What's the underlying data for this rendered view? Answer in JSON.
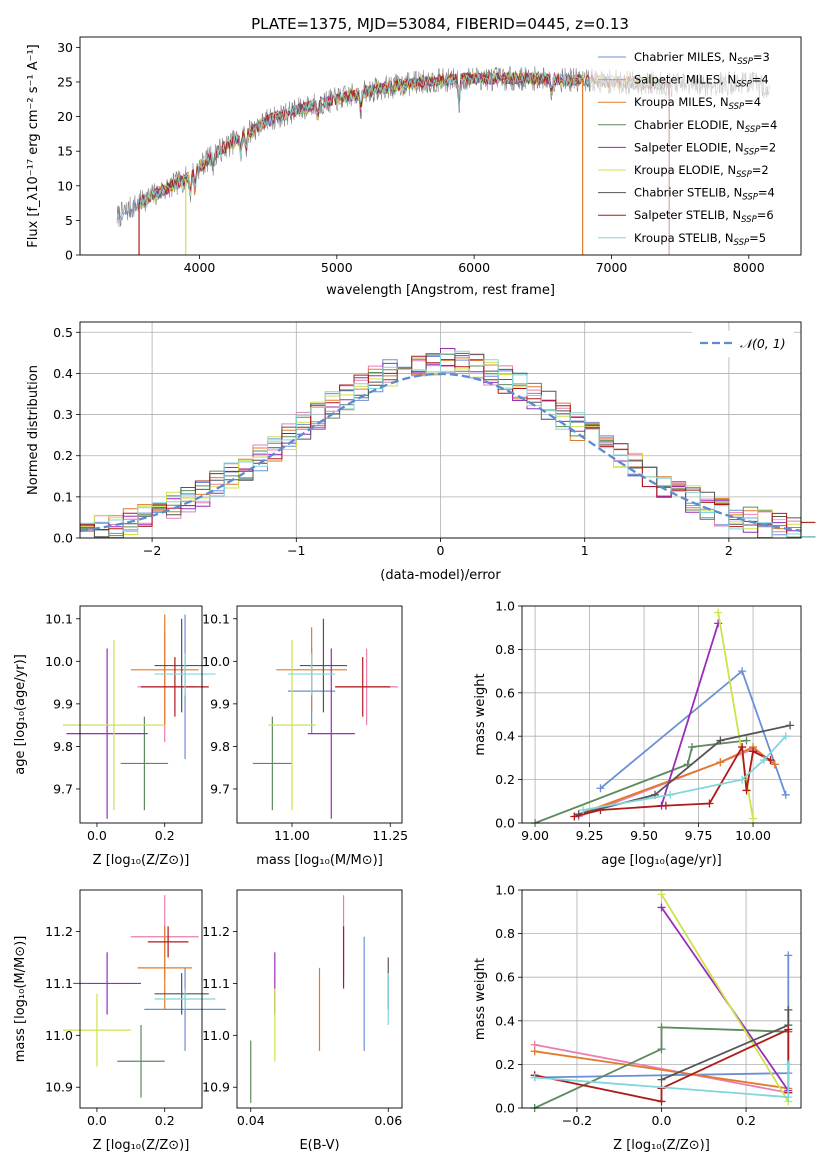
{
  "figure": {
    "title": "PLATE=1375, MJD=53084, FIBERID=0445, z=0.13"
  },
  "colors": {
    "Chabrier MILES": "#6b8fd6",
    "Salpeter MILES": "#e87fb0",
    "Kroupa MILES": "#e07b2a",
    "Chabrier ELODIE": "#5e8a5e",
    "Salpeter ELODIE": "#9a2db8",
    "Kroupa ELODIE": "#cfe24a",
    "Chabrier STELIB": "#555555",
    "Salpeter STELIB": "#b01a1a",
    "Kroupa STELIB": "#7fd6dc",
    "data": "#808080",
    "gaussian": "#5b8bd0"
  },
  "chart_data": [
    {
      "id": "spectrum",
      "type": "line",
      "xlabel": "wavelength [Angstrom, rest frame]",
      "ylabel": "Flux [f_λ10⁻¹⁷ erg cm⁻² s⁻¹ A⁻¹]",
      "xlim": [
        3130,
        8380
      ],
      "ylim": [
        0,
        31.5
      ],
      "xticks": [
        4000,
        5000,
        6000,
        7000,
        8000
      ],
      "yticks": [
        0,
        5,
        10,
        15,
        20,
        25,
        30
      ],
      "legend_position": "top-right",
      "legend": [
        {
          "label": "Chabrier MILES, N",
          "sub": "SSP",
          "val": "=3"
        },
        {
          "label": "Salpeter MILES, N",
          "sub": "SSP",
          "val": "=4"
        },
        {
          "label": "Kroupa MILES, N",
          "sub": "SSP",
          "val": "=4"
        },
        {
          "label": "Chabrier ELODIE, N",
          "sub": "SSP",
          "val": "=4"
        },
        {
          "label": "Salpeter ELODIE, N",
          "sub": "SSP",
          "val": "=2"
        },
        {
          "label": "Kroupa ELODIE, N",
          "sub": "SSP",
          "val": "=2"
        },
        {
          "label": "Chabrier STELIB, N",
          "sub": "SSP",
          "val": "=4"
        },
        {
          "label": "Salpeter STELIB, N",
          "sub": "SSP",
          "val": "=6"
        },
        {
          "label": "Kroupa STELIB, N",
          "sub": "SSP",
          "val": "=5"
        }
      ],
      "continuum": [
        [
          3400,
          5.5
        ],
        [
          3600,
          8
        ],
        [
          3900,
          11
        ],
        [
          4100,
          14.5
        ],
        [
          4500,
          19.5
        ],
        [
          4800,
          21.5
        ],
        [
          5000,
          22.5
        ],
        [
          5300,
          24
        ],
        [
          5600,
          25
        ],
        [
          6000,
          25.5
        ],
        [
          6500,
          25.5
        ],
        [
          7000,
          25
        ],
        [
          7300,
          24.8
        ],
        [
          7600,
          24.5
        ],
        [
          8000,
          25
        ],
        [
          8150,
          24
        ]
      ],
      "model_ranges": [
        [
          3400,
          3560
        ],
        [
          3560,
          7000
        ],
        [
          3560,
          7420
        ],
        [
          3560,
          7420
        ],
        [
          3560,
          7420
        ],
        [
          3560,
          7420
        ],
        [
          3560,
          7420
        ],
        [
          3560,
          7420
        ],
        [
          3560,
          7420
        ]
      ],
      "dropouts": [
        {
          "series": "Kroupa ELODIE",
          "x": 3900,
          "side": "start"
        },
        {
          "series": "Salpeter STELIB",
          "x": 3560,
          "side": "start"
        },
        {
          "series": "Kroupa MILES",
          "x": 6790,
          "side": "end"
        },
        {
          "series": "Salpeter STELIB",
          "x": 7420,
          "side": "end"
        }
      ]
    },
    {
      "id": "residuals",
      "type": "histogram",
      "xlabel": "(data-model)/error",
      "ylabel": "Normed distribution",
      "xlim": [
        -2.5,
        2.5
      ],
      "ylim": [
        0,
        0.525
      ],
      "xticks": [
        -2,
        -1,
        0,
        1,
        2
      ],
      "yticks": [
        0.0,
        0.1,
        0.2,
        0.3,
        0.4,
        0.5
      ],
      "grid": true,
      "bin_width": 0.1,
      "legend_position": "top-right",
      "legend_label": "𝒩(0, 1)"
    },
    {
      "id": "age-vs-Z",
      "type": "scatter-errorbar",
      "xlabel": "Z [log₁₀(Z/Z⊙)]",
      "ylabel": "age  [log₁₀(age/yr)]",
      "xlim": [
        -0.05,
        0.31
      ],
      "ylim": [
        9.62,
        10.13
      ],
      "xticks": [
        0.0,
        0.2
      ],
      "yticks": [
        9.7,
        9.8,
        9.9,
        10.0,
        10.1
      ],
      "points": [
        {
          "series": "Chabrier MILES",
          "x": 0.26,
          "xerr": 0.04,
          "y": 9.94,
          "yerr": 0.17
        },
        {
          "series": "Salpeter MILES",
          "x": 0.2,
          "xerr": 0.08,
          "y": 9.94,
          "yerr": 0.13
        },
        {
          "series": "Kroupa MILES",
          "x": 0.2,
          "xerr": 0.1,
          "y": 9.98,
          "yerr": 0.13
        },
        {
          "series": "Chabrier ELODIE",
          "x": 0.14,
          "xerr": 0.07,
          "y": 9.76,
          "yerr": 0.11
        },
        {
          "series": "Salpeter ELODIE",
          "x": 0.03,
          "xerr": 0.12,
          "y": 9.83,
          "yerr": 0.2
        },
        {
          "series": "Kroupa ELODIE",
          "x": 0.05,
          "xerr": 0.15,
          "y": 9.85,
          "yerr": 0.2
        },
        {
          "series": "Chabrier STELIB",
          "x": 0.25,
          "xerr": 0.08,
          "y": 9.99,
          "yerr": 0.11
        },
        {
          "series": "Salpeter STELIB",
          "x": 0.23,
          "xerr": 0.1,
          "y": 9.94,
          "yerr": 0.07
        },
        {
          "series": "Kroupa STELIB",
          "x": 0.26,
          "xerr": 0.09,
          "y": 9.97,
          "yerr": 0.05
        }
      ]
    },
    {
      "id": "age-vs-mass",
      "type": "scatter-errorbar",
      "xlabel": "mass [log₁₀(M/M⊙)]",
      "ylabel": "",
      "xlim": [
        10.86,
        11.28
      ],
      "ylim": [
        9.62,
        10.13
      ],
      "xticks": [
        11.0,
        11.25
      ],
      "yticks": [
        9.7,
        9.8,
        9.9,
        10.0,
        10.1
      ],
      "points": [
        {
          "series": "Chabrier MILES",
          "x": 11.05,
          "xerr": 0.06,
          "y": 9.93,
          "yerr": 0.1
        },
        {
          "series": "Salpeter MILES",
          "x": 11.19,
          "xerr": 0.08,
          "y": 9.94,
          "yerr": 0.09
        },
        {
          "series": "Kroupa MILES",
          "x": 11.05,
          "xerr": 0.09,
          "y": 9.98,
          "yerr": 0.1
        },
        {
          "series": "Chabrier ELODIE",
          "x": 10.95,
          "xerr": 0.05,
          "y": 9.76,
          "yerr": 0.11
        },
        {
          "series": "Salpeter ELODIE",
          "x": 11.1,
          "xerr": 0.06,
          "y": 9.83,
          "yerr": 0.2
        },
        {
          "series": "Kroupa ELODIE",
          "x": 11.0,
          "xerr": 0.06,
          "y": 9.85,
          "yerr": 0.2
        },
        {
          "series": "Chabrier STELIB",
          "x": 11.08,
          "xerr": 0.06,
          "y": 9.99,
          "yerr": 0.11
        },
        {
          "series": "Salpeter STELIB",
          "x": 11.18,
          "xerr": 0.07,
          "y": 9.94,
          "yerr": 0.07
        },
        {
          "series": "Kroupa STELIB",
          "x": 11.05,
          "xerr": 0.06,
          "y": 9.97,
          "yerr": 0.05
        }
      ]
    },
    {
      "id": "mass-weight-vs-age",
      "type": "line",
      "xlabel": "age  [log₁₀(age/yr)]",
      "ylabel": "mass weight",
      "xlim": [
        8.94,
        10.22
      ],
      "ylim": [
        0,
        1.0
      ],
      "xticks": [
        9.0,
        9.25,
        9.5,
        9.75,
        10.0
      ],
      "yticks": [
        0.0,
        0.2,
        0.4,
        0.6,
        0.8,
        1.0
      ],
      "grid": true,
      "series": [
        {
          "name": "Chabrier MILES",
          "points": [
            [
              9.3,
              0.16
            ],
            [
              9.95,
              0.7
            ],
            [
              10.15,
              0.13
            ]
          ]
        },
        {
          "name": "Salpeter MILES",
          "points": [
            [
              9.2,
              0.03
            ],
            [
              9.85,
              0.28
            ],
            [
              10.0,
              0.34
            ],
            [
              10.1,
              0.27
            ]
          ]
        },
        {
          "name": "Kroupa MILES",
          "points": [
            [
              9.2,
              0.04
            ],
            [
              9.85,
              0.28
            ],
            [
              10.0,
              0.35
            ],
            [
              10.1,
              0.27
            ]
          ]
        },
        {
          "name": "Chabrier ELODIE",
          "points": [
            [
              9.0,
              0.0
            ],
            [
              9.7,
              0.27
            ],
            [
              9.72,
              0.35
            ],
            [
              9.97,
              0.38
            ]
          ]
        },
        {
          "name": "Salpeter ELODIE",
          "points": [
            [
              9.58,
              0.08
            ],
            [
              9.84,
              0.92
            ]
          ]
        },
        {
          "name": "Kroupa ELODIE",
          "points": [
            [
              9.84,
              0.97
            ],
            [
              10.0,
              0.02
            ]
          ]
        },
        {
          "name": "Chabrier STELIB",
          "points": [
            [
              9.2,
              0.04
            ],
            [
              9.55,
              0.13
            ],
            [
              9.85,
              0.38
            ],
            [
              10.17,
              0.45
            ]
          ]
        },
        {
          "name": "Salpeter STELIB",
          "points": [
            [
              9.18,
              0.03
            ],
            [
              9.3,
              0.06
            ],
            [
              9.6,
              0.08
            ],
            [
              9.8,
              0.09
            ],
            [
              9.95,
              0.35
            ],
            [
              9.97,
              0.15
            ],
            [
              10.0,
              0.33
            ],
            [
              10.08,
              0.29
            ]
          ]
        },
        {
          "name": "Kroupa STELIB",
          "points": [
            [
              9.22,
              0.06
            ],
            [
              9.62,
              0.13
            ],
            [
              9.95,
              0.2
            ],
            [
              10.05,
              0.29
            ],
            [
              10.15,
              0.4
            ]
          ]
        }
      ]
    },
    {
      "id": "mass-vs-Z",
      "type": "scatter-errorbar",
      "xlabel": "Z [log₁₀(Z/Z⊙)]",
      "ylabel": "mass [log₁₀(M/M⊙)]",
      "xlim": [
        -0.05,
        0.31
      ],
      "ylim": [
        10.86,
        11.28
      ],
      "xticks": [
        0.0,
        0.2
      ],
      "yticks": [
        10.9,
        11.0,
        11.1,
        11.2
      ],
      "points": [
        {
          "series": "Chabrier MILES",
          "x": 0.26,
          "xerr": 0.12,
          "y": 11.05,
          "yerr": 0.08
        },
        {
          "series": "Salpeter MILES",
          "x": 0.2,
          "xerr": 0.1,
          "y": 11.19,
          "yerr": 0.08
        },
        {
          "series": "Kroupa MILES",
          "x": 0.2,
          "xerr": 0.08,
          "y": 11.13,
          "yerr": 0.08
        },
        {
          "series": "Chabrier ELODIE",
          "x": 0.13,
          "xerr": 0.07,
          "y": 10.95,
          "yerr": 0.07
        },
        {
          "series": "Salpeter ELODIE",
          "x": 0.03,
          "xerr": 0.1,
          "y": 11.1,
          "yerr": 0.06
        },
        {
          "series": "Kroupa ELODIE",
          "x": 0.0,
          "xerr": 0.1,
          "y": 11.01,
          "yerr": 0.07
        },
        {
          "series": "Chabrier STELIB",
          "x": 0.25,
          "xerr": 0.08,
          "y": 11.08,
          "yerr": 0.04
        },
        {
          "series": "Salpeter STELIB",
          "x": 0.21,
          "xerr": 0.06,
          "y": 11.18,
          "yerr": 0.03
        },
        {
          "series": "Kroupa STELIB",
          "x": 0.26,
          "xerr": 0.09,
          "y": 11.07,
          "yerr": 0.02
        }
      ]
    },
    {
      "id": "mass-vs-EBV",
      "type": "errorbar",
      "xlabel": "E(B-V)",
      "ylabel": "",
      "xlim": [
        0.038,
        0.062
      ],
      "ylim": [
        10.86,
        11.28
      ],
      "xticks": [
        0.04,
        0.06
      ],
      "yticks": [
        10.9,
        11.0,
        11.1,
        11.2
      ],
      "points": [
        {
          "series": "Chabrier MILES",
          "x": 0.0565,
          "y": 11.08,
          "yerr": 0.11
        },
        {
          "series": "Salpeter MILES",
          "x": 0.0535,
          "y": 11.19,
          "yerr": 0.08
        },
        {
          "series": "Kroupa MILES",
          "x": 0.05,
          "y": 11.05,
          "yerr": 0.08
        },
        {
          "series": "Chabrier ELODIE",
          "x": 0.04,
          "y": 10.93,
          "yerr": 0.06
        },
        {
          "series": "Salpeter ELODIE",
          "x": 0.0435,
          "y": 11.1,
          "yerr": 0.06
        },
        {
          "series": "Kroupa ELODIE",
          "x": 0.0435,
          "y": 11.02,
          "yerr": 0.07
        },
        {
          "series": "Chabrier STELIB",
          "x": 0.06,
          "y": 11.1,
          "yerr": 0.05
        },
        {
          "series": "Salpeter STELIB",
          "x": 0.0535,
          "y": 11.15,
          "yerr": 0.06
        },
        {
          "series": "Kroupa STELIB",
          "x": 0.06,
          "y": 11.07,
          "yerr": 0.05
        }
      ]
    },
    {
      "id": "mass-weight-vs-Z",
      "type": "line",
      "xlabel": "Z [log₁₀(Z/Z⊙)]",
      "ylabel": "mass weight",
      "xlim": [
        -0.33,
        0.33
      ],
      "ylim": [
        0,
        1.0
      ],
      "xticks": [
        -0.2,
        0.0,
        0.2
      ],
      "yticks": [
        0.0,
        0.2,
        0.4,
        0.6,
        0.8,
        1.0
      ],
      "grid": true,
      "series": [
        {
          "name": "Chabrier MILES",
          "points": [
            [
              -0.3,
              0.14
            ],
            [
              0.3,
              0.16
            ],
            [
              0.3,
              0.7
            ]
          ]
        },
        {
          "name": "Salpeter MILES",
          "points": [
            [
              -0.3,
              0.29
            ],
            [
              0.3,
              0.07
            ]
          ]
        },
        {
          "name": "Kroupa MILES",
          "points": [
            [
              -0.3,
              0.26
            ],
            [
              0.3,
              0.09
            ]
          ]
        },
        {
          "name": "Chabrier ELODIE",
          "points": [
            [
              -0.3,
              0.0
            ],
            [
              0.0,
              0.27
            ],
            [
              0.0,
              0.37
            ],
            [
              0.3,
              0.35
            ]
          ]
        },
        {
          "name": "Salpeter ELODIE",
          "points": [
            [
              0.0,
              0.92
            ],
            [
              0.3,
              0.08
            ]
          ]
        },
        {
          "name": "Kroupa ELODIE",
          "points": [
            [
              0.0,
              0.98
            ],
            [
              0.3,
              0.03
            ]
          ]
        },
        {
          "name": "Chabrier STELIB",
          "points": [
            [
              0.0,
              0.13
            ],
            [
              0.3,
              0.38
            ],
            [
              0.3,
              0.45
            ]
          ]
        },
        {
          "name": "Salpeter STELIB",
          "points": [
            [
              -0.3,
              0.15
            ],
            [
              0.0,
              0.03
            ],
            [
              0.0,
              0.09
            ],
            [
              0.3,
              0.36
            ],
            [
              0.3,
              0.07
            ]
          ]
        },
        {
          "name": "Kroupa STELIB",
          "points": [
            [
              -0.3,
              0.14
            ],
            [
              0.3,
              0.05
            ],
            [
              0.3,
              0.2
            ]
          ]
        }
      ]
    }
  ]
}
